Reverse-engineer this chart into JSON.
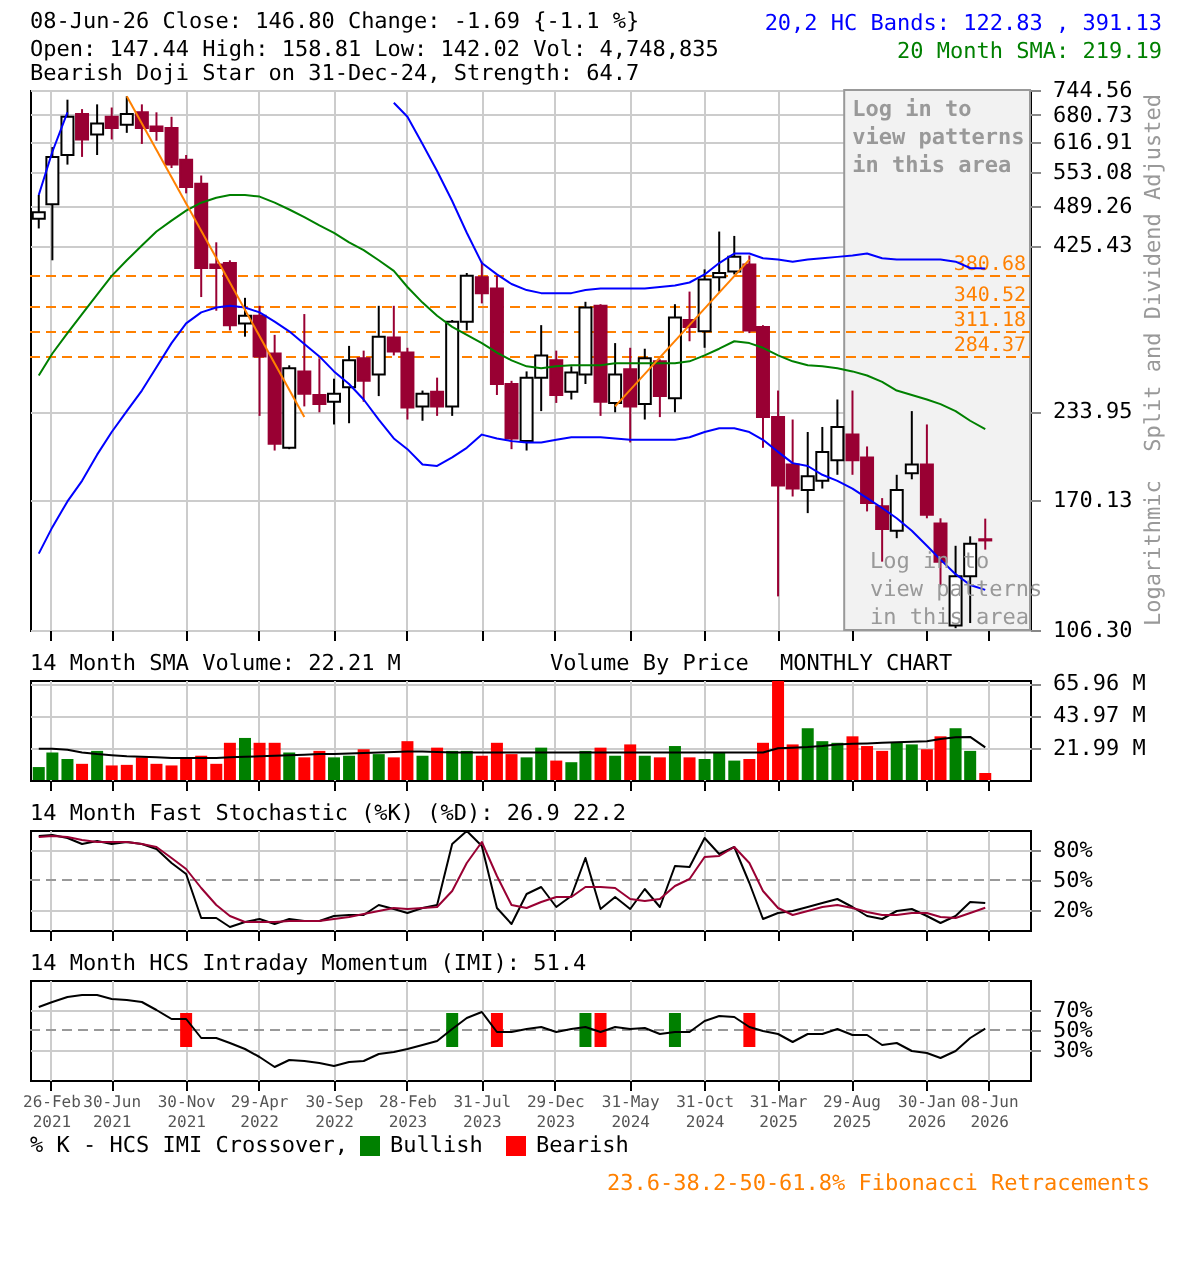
{
  "chart_data": [
    {
      "type": "candlestick",
      "title": "08-Jun-26   Close: 146.80   Change: -1.69 {-1.1 %}",
      "subtitle": "Open: 147.44   High: 158.81   Low: 142.02   Vol: 4,748,835",
      "ylabel": "Split and Dividend Adjusted",
      "annotations": [
        "Bearish Doji Star on 31-Dec-24, Strength: 64.7",
        "20,2 HC Bands: 122.83 , 391.13",
        "20 Month SMA: 219.19",
        "Log in to view patterns in this area",
        "Logarithmic"
      ],
      "x": [
        "2021-02",
        "2021-03",
        "2021-04",
        "2021-05",
        "2021-06",
        "2021-07",
        "2021-08",
        "2021-09",
        "2021-10",
        "2021-11",
        "2021-12",
        "2022-01",
        "2022-02",
        "2022-03",
        "2022-04",
        "2022-05",
        "2022-06",
        "2022-07",
        "2022-08",
        "2022-09",
        "2022-10",
        "2022-11",
        "2022-12",
        "2023-01",
        "2023-02",
        "2023-03",
        "2023-04",
        "2023-05",
        "2023-06",
        "2023-07",
        "2023-08",
        "2023-09",
        "2023-10",
        "2023-11",
        "2023-12",
        "2024-01",
        "2024-02",
        "2024-03",
        "2024-04",
        "2024-05",
        "2024-06",
        "2024-07",
        "2024-08",
        "2024-09",
        "2024-10",
        "2024-11",
        "2024-12",
        "2025-01",
        "2025-02",
        "2025-03",
        "2025-04",
        "2025-05",
        "2025-06",
        "2025-07",
        "2025-08",
        "2025-09",
        "2025-10",
        "2025-11",
        "2025-12",
        "2026-01",
        "2026-02",
        "2026-03",
        "2026-04",
        "2026-05",
        "2026-06"
      ],
      "ohlc": [
        [
          468,
          510,
          452,
          479
        ],
        [
          493,
          606,
          403,
          585
        ],
        [
          589,
          719,
          569,
          676
        ],
        [
          683,
          695,
          585,
          623
        ],
        [
          634,
          707,
          589,
          660
        ],
        [
          676,
          699,
          623,
          649
        ],
        [
          657,
          728,
          638,
          683
        ],
        [
          687,
          707,
          613,
          649
        ],
        [
          653,
          687,
          620,
          642
        ],
        [
          649,
          676,
          562,
          569
        ],
        [
          579,
          589,
          513,
          525
        ],
        [
          531,
          547,
          353,
          392
        ],
        [
          397,
          430,
          336,
          392
        ],
        [
          399,
          403,
          313,
          319
        ],
        [
          321,
          352,
          306,
          330
        ],
        [
          330,
          342,
          230,
          285
        ],
        [
          288,
          308,
          203,
          208
        ],
        [
          205,
          276,
          204,
          273
        ],
        [
          270,
          332,
          238,
          249
        ],
        [
          248,
          283,
          233,
          240
        ],
        [
          242,
          263,
          223,
          249
        ],
        [
          255,
          296,
          224,
          281
        ],
        [
          283,
          291,
          242,
          261
        ],
        [
          267,
          342,
          247,
          306
        ],
        [
          305,
          342,
          286,
          290
        ],
        [
          289,
          294,
          227,
          237
        ],
        [
          238,
          252,
          226,
          249
        ],
        [
          251,
          264,
          230,
          238
        ],
        [
          238,
          325,
          230,
          323
        ],
        [
          323,
          385,
          313,
          381
        ],
        [
          379,
          401,
          345,
          358
        ],
        [
          364,
          381,
          248,
          258
        ],
        [
          258,
          261,
          204,
          212
        ],
        [
          210,
          270,
          203,
          264
        ],
        [
          264,
          319,
          234,
          286
        ],
        [
          281,
          291,
          241,
          248
        ],
        [
          251,
          275,
          244,
          269
        ],
        [
          267,
          347,
          258,
          340
        ],
        [
          342,
          344,
          230,
          242
        ],
        [
          241,
          299,
          233,
          267
        ],
        [
          272,
          294,
          209,
          238
        ],
        [
          240,
          293,
          227,
          283
        ],
        [
          280,
          282,
          229,
          247
        ],
        [
          245,
          344,
          233,
          328
        ],
        [
          325,
          360,
          301,
          317
        ],
        [
          312,
          390,
          294,
          376
        ],
        [
          379,
          447,
          360,
          385
        ],
        [
          387,
          440,
          383,
          408
        ],
        [
          397,
          410,
          310,
          313
        ],
        [
          317,
          319,
          205,
          229
        ],
        [
          229,
          252,
          120,
          179
        ],
        [
          193,
          227,
          172,
          177
        ],
        [
          176,
          217,
          162,
          185
        ],
        [
          182,
          221,
          177,
          202
        ],
        [
          196,
          244,
          186,
          221
        ],
        [
          215,
          252,
          186,
          196
        ],
        [
          198,
          206,
          163,
          168
        ],
        [
          166,
          171,
          136,
          153
        ],
        [
          152,
          186,
          148,
          176
        ],
        [
          187,
          234,
          183,
          193
        ],
        [
          193,
          223,
          159,
          161
        ],
        [
          156,
          159,
          125,
          136
        ],
        [
          108,
          144,
          107,
          129
        ],
        [
          129,
          149,
          109,
          145
        ],
        [
          147.44,
          158.81,
          142.02,
          146.8
        ]
      ],
      "colors": [
        "#000000",
        "#000000",
        "#000000",
        "#990033",
        "#000000",
        "#990033",
        "#000000",
        "#990033",
        "#990033",
        "#990033",
        "#990033",
        "#990033",
        "#990033",
        "#990033",
        "#000000",
        "#990033",
        "#990033",
        "#000000",
        "#990033",
        "#990033",
        "#000000",
        "#000000",
        "#990033",
        "#000000",
        "#990033",
        "#990033",
        "#000000",
        "#990033",
        "#000000",
        "#000000",
        "#990033",
        "#990033",
        "#990033",
        "#000000",
        "#000000",
        "#990033",
        "#000000",
        "#000000",
        "#990033",
        "#000000",
        "#990033",
        "#000000",
        "#990033",
        "#000000",
        "#990033",
        "#000000",
        "#000000",
        "#000000",
        "#990033",
        "#990033",
        "#990033",
        "#990033",
        "#000000",
        "#000000",
        "#000000",
        "#990033",
        "#990033",
        "#990033",
        "#000000",
        "#000000",
        "#990033",
        "#990033",
        "#000000",
        "#000000",
        "#990033"
      ],
      "series": [
        {
          "type": "line",
          "color": "#0000ff",
          "values": [
            510,
            596,
            687,
            null,
            null,
            null,
            null,
            null,
            null,
            null,
            null,
            null,
            null,
            null,
            null,
            null,
            null,
            null,
            null,
            null,
            null,
            null,
            null,
            null,
            711,
            676,
            613,
            556,
            499,
            445,
            399,
            383,
            370,
            362,
            358,
            358,
            358,
            362,
            364,
            364,
            364,
            364,
            366,
            368,
            372,
            383,
            399,
            413,
            413,
            406,
            404,
            401,
            404,
            406,
            408,
            410,
            413,
            406,
            404,
            404,
            404,
            404,
            401,
            392,
            391.13
          ]
        },
        {
          "type": "line",
          "color": "#0000ff",
          "values": [
            140,
            154,
            169,
            182,
            200,
            217,
            234,
            252,
            274,
            299,
            321,
            334,
            340,
            342,
            340,
            334,
            323,
            312,
            298,
            285,
            270,
            258,
            244,
            227,
            212,
            204,
            193,
            192,
            198,
            205,
            215,
            212,
            210,
            209,
            209,
            211,
            213,
            213,
            213,
            212,
            211,
            211,
            211,
            211,
            213,
            217,
            220,
            220,
            217,
            211,
            202,
            194,
            192,
            186,
            182,
            177,
            171,
            165,
            159,
            152,
            144,
            137,
            130,
            125,
            122.83
          ]
        },
        {
          "type": "line",
          "color": "#008000",
          "values": [
            266,
            288,
            310,
            332,
            356,
            381,
            403,
            425,
            447,
            465,
            482,
            496,
            505,
            510,
            510,
            507,
            496,
            484,
            471,
            457,
            445,
            430,
            418,
            403,
            388,
            366,
            346,
            330,
            317,
            308,
            299,
            289,
            281,
            275,
            273,
            275,
            276,
            276,
            276,
            278,
            278,
            278,
            278,
            278,
            280,
            286,
            293,
            301,
            299,
            294,
            286,
            280,
            276,
            275,
            273,
            270,
            266,
            260,
            252,
            248,
            244,
            240,
            234,
            226,
            219.19
          ]
        },
        {
          "type": "line",
          "color": "#ff8000",
          "x": [
            "2021-08",
            "2022-08"
          ],
          "values": [
            728,
            229
          ]
        },
        {
          "type": "line",
          "color": "#ff8000",
          "x": [
            "2024-05",
            "2025-02"
          ],
          "values": [
            238,
            404
          ]
        }
      ],
      "ref_lines": [
        {
          "axis": "y",
          "value": 380.68,
          "label": "380.68",
          "color": "#ff8000",
          "line_style": "dashed"
        },
        {
          "axis": "y",
          "value": 340.52,
          "label": "340.52",
          "color": "#ff8000",
          "line_style": "dashed"
        },
        {
          "axis": "y",
          "value": 311.18,
          "label": "311.18",
          "color": "#ff8000",
          "line_style": "dashed"
        },
        {
          "axis": "y",
          "value": 284.37,
          "label": "284.37",
          "color": "#ff8000",
          "line_style": "dashed"
        }
      ],
      "bands": [
        {
          "axis": "x",
          "from": "2025-08-15",
          "to": "2026-09-01",
          "label": "Log in to view patterns in this area",
          "color": "#f2f2f2"
        }
      ],
      "log": true,
      "ylim": [
        106.3,
        744.56
      ],
      "yticks": [
        {
          "value": 106.3,
          "label": "106.30"
        },
        170.13,
        233.95,
        425.43,
        489.26,
        553.08,
        616.91,
        680.73,
        744.56
      ],
      "xlim": [
        "2021-01-14",
        "2026-09-01"
      ],
      "xticks": [
        {
          "value": "2021-02-26",
          "label": null
        },
        {
          "value": "2021-06-30",
          "label": null
        },
        {
          "value": "2021-11-30",
          "label": null
        },
        {
          "value": "2022-04-29",
          "label": null
        },
        {
          "value": "2022-09-30",
          "label": null
        },
        {
          "value": "2023-02-28",
          "label": null
        },
        {
          "value": "2023-07-31",
          "label": null
        },
        {
          "value": "2023-12-29",
          "label": null
        },
        {
          "value": "2024-05-31",
          "label": null
        },
        {
          "value": "2024-10-31",
          "label": null
        },
        {
          "value": "2025-03-31",
          "label": null
        },
        {
          "value": "2025-08-29",
          "label": null
        },
        {
          "value": "2026-01-30",
          "label": null
        },
        {
          "value": "2026-06-08",
          "label": null
        }
      ],
      "tick_labels": "y",
      "grid": true,
      "line_style": "solid"
    },
    {
      "type": "bar",
      "title": "14 Month SMA Volume: 22.21 M",
      "annotations": [
        "Volume By Price",
        "MONTHLY CHART"
      ],
      "x": [
        "2021-02",
        "2021-03",
        "2021-04",
        "2021-05",
        "2021-06",
        "2021-07",
        "2021-08",
        "2021-09",
        "2021-10",
        "2021-11",
        "2021-12",
        "2022-01",
        "2022-02",
        "2022-03",
        "2022-04",
        "2022-05",
        "2022-06",
        "2022-07",
        "2022-08",
        "2022-09",
        "2022-10",
        "2022-11",
        "2022-12",
        "2023-01",
        "2023-02",
        "2023-03",
        "2023-04",
        "2023-05",
        "2023-06",
        "2023-07",
        "2023-08",
        "2023-09",
        "2023-10",
        "2023-11",
        "2023-12",
        "2024-01",
        "2024-02",
        "2024-03",
        "2024-04",
        "2024-05",
        "2024-06",
        "2024-07",
        "2024-08",
        "2024-09",
        "2024-10",
        "2024-11",
        "2024-12",
        "2025-01",
        "2025-02",
        "2025-03",
        "2025-04",
        "2025-05",
        "2025-06",
        "2025-07",
        "2025-08",
        "2025-09",
        "2025-10",
        "2025-11",
        "2025-12",
        "2026-01",
        "2026-02",
        "2026-03",
        "2026-04",
        "2026-05",
        "2026-06"
      ],
      "series": [
        {
          "type": "bar",
          "values": [
            8.8,
            18.7,
            14.3,
            11.0,
            19.8,
            9.9,
            10.3,
            15.4,
            11.0,
            9.9,
            15.4,
            16.5,
            11.0,
            25.3,
            28.6,
            25.3,
            25.3,
            18.7,
            15.4,
            19.8,
            15.4,
            16.5,
            20.9,
            17.6,
            15.4,
            26.4,
            16.5,
            22.0,
            19.8,
            19.8,
            16.5,
            25.3,
            17.6,
            15.4,
            22.0,
            13.2,
            12.1,
            19.8,
            22.0,
            16.5,
            24.2,
            16.5,
            15.4,
            23.1,
            15.4,
            14.3,
            18.7,
            13.2,
            14.3,
            25.3,
            67.4,
            24.2,
            35.2,
            26.4,
            25.3,
            29.7,
            23.1,
            19.8,
            25.3,
            24.2,
            20.9,
            29.7,
            35.2,
            19.8,
            4.75
          ],
          "colors": [
            "#008000",
            "#008000",
            "#008000",
            "#ff0000",
            "#008000",
            "#ff0000",
            "#ff0000",
            "#ff0000",
            "#ff0000",
            "#ff0000",
            "#ff0000",
            "#ff0000",
            "#ff0000",
            "#ff0000",
            "#008000",
            "#ff0000",
            "#ff0000",
            "#008000",
            "#ff0000",
            "#ff0000",
            "#008000",
            "#008000",
            "#ff0000",
            "#008000",
            "#ff0000",
            "#ff0000",
            "#008000",
            "#ff0000",
            "#008000",
            "#008000",
            "#ff0000",
            "#ff0000",
            "#ff0000",
            "#008000",
            "#008000",
            "#ff0000",
            "#008000",
            "#008000",
            "#ff0000",
            "#008000",
            "#ff0000",
            "#008000",
            "#ff0000",
            "#008000",
            "#ff0000",
            "#008000",
            "#008000",
            "#008000",
            "#ff0000",
            "#ff0000",
            "#ff0000",
            "#ff0000",
            "#008000",
            "#008000",
            "#008000",
            "#ff0000",
            "#ff0000",
            "#ff0000",
            "#008000",
            "#008000",
            "#ff0000",
            "#ff0000",
            "#008000",
            "#008000",
            "#ff0000"
          ]
        },
        {
          "type": "line",
          "color": "#000000",
          "values": [
            21.3,
            21.3,
            20.5,
            18.7,
            17.6,
            16.9,
            16.1,
            15.8,
            15.4,
            15.0,
            15.0,
            15.0,
            15.0,
            15.4,
            15.8,
            16.1,
            16.5,
            16.9,
            17.2,
            17.6,
            17.6,
            18.0,
            18.3,
            18.7,
            19.1,
            19.4,
            19.4,
            19.1,
            18.7,
            18.7,
            18.7,
            18.7,
            18.7,
            18.7,
            18.7,
            18.7,
            18.7,
            18.7,
            18.7,
            18.7,
            18.7,
            18.7,
            18.7,
            18.7,
            18.7,
            18.7,
            18.7,
            18.7,
            18.7,
            18.7,
            21.6,
            22.0,
            22.4,
            23.1,
            24.2,
            24.6,
            24.9,
            25.3,
            25.7,
            26.0,
            26.4,
            27.9,
            29.0,
            29.3,
            22.21
          ]
        }
      ],
      "ylim": [
        0,
        68
      ],
      "yticks": [
        {
          "value": 21.99,
          "label": "21.99 M"
        },
        {
          "value": 43.97,
          "label": "43.97 M"
        },
        {
          "value": 65.96,
          "label": "65.96 M"
        }
      ],
      "xlim": [
        "2021-01-14",
        "2026-09-01"
      ],
      "xticks": [
        {
          "value": "2021-02-26",
          "label": null
        },
        {
          "value": "2021-06-30",
          "label": null
        },
        {
          "value": "2021-11-30",
          "label": null
        },
        {
          "value": "2022-04-29",
          "label": null
        },
        {
          "value": "2022-09-30",
          "label": null
        },
        {
          "value": "2023-02-28",
          "label": null
        },
        {
          "value": "2023-07-31",
          "label": null
        },
        {
          "value": "2023-12-29",
          "label": null
        },
        {
          "value": "2024-05-31",
          "label": null
        },
        {
          "value": "2024-10-31",
          "label": null
        },
        {
          "value": "2025-03-31",
          "label": null
        },
        {
          "value": "2025-08-29",
          "label": null
        },
        {
          "value": "2026-01-30",
          "label": null
        },
        {
          "value": "2026-06-08",
          "label": null
        }
      ],
      "tick_labels": "y",
      "grid": true
    },
    {
      "type": "line",
      "title": "14 Month Fast Stochastic (%K) (%D): 26.9  22.2",
      "x": [
        "2021-02",
        "2021-03",
        "2021-04",
        "2021-05",
        "2021-06",
        "2021-07",
        "2021-08",
        "2021-09",
        "2021-10",
        "2021-11",
        "2021-12",
        "2022-01",
        "2022-02",
        "2022-03",
        "2022-04",
        "2022-05",
        "2022-06",
        "2022-07",
        "2022-08",
        "2022-09",
        "2022-10",
        "2022-11",
        "2022-12",
        "2023-01",
        "2023-02",
        "2023-03",
        "2023-04",
        "2023-05",
        "2023-06",
        "2023-07",
        "2023-08",
        "2023-09",
        "2023-10",
        "2023-11",
        "2023-12",
        "2024-01",
        "2024-02",
        "2024-03",
        "2024-04",
        "2024-05",
        "2024-06",
        "2024-07",
        "2024-08",
        "2024-09",
        "2024-10",
        "2024-11",
        "2024-12",
        "2025-01",
        "2025-02",
        "2025-03",
        "2025-04",
        "2025-05",
        "2025-06",
        "2025-07",
        "2025-08",
        "2025-09",
        "2025-10",
        "2025-11",
        "2025-12",
        "2026-01",
        "2026-02",
        "2026-03",
        "2026-04",
        "2026-05",
        "2026-06"
      ],
      "series": [
        {
          "color": "#000000",
          "values": [
            94,
            95,
            92,
            86,
            89,
            86,
            88,
            86,
            81,
            67,
            56,
            12,
            12,
            3,
            8,
            11,
            6,
            11,
            9,
            9,
            14,
            15,
            15,
            25,
            21,
            17,
            22,
            25,
            86,
            99,
            84,
            22,
            6,
            36,
            43,
            23,
            34,
            72,
            21,
            33,
            21,
            41,
            23,
            64,
            63,
            92,
            76,
            83,
            47,
            11,
            17,
            19,
            23,
            27,
            31,
            23,
            14,
            11,
            19,
            21,
            14,
            7,
            14,
            28,
            26.9
          ]
        },
        {
          "color": "#990033",
          "values": [
            93,
            94,
            93,
            90,
            88,
            88,
            88,
            86,
            83,
            72,
            61,
            42,
            25,
            14,
            8,
            8,
            8,
            9,
            9,
            9,
            11,
            13,
            16,
            19,
            22,
            21,
            22,
            23,
            39,
            67,
            88,
            54,
            25,
            22,
            28,
            33,
            33,
            43,
            43,
            42,
            31,
            29,
            31,
            44,
            51,
            73,
            74,
            83,
            67,
            39,
            22,
            15,
            19,
            23,
            25,
            22,
            18,
            15,
            15,
            17,
            17,
            13,
            12,
            17,
            22.2
          ]
        }
      ],
      "ref_lines": [
        {
          "axis": "y",
          "value": 50,
          "color": "#999999",
          "line_style": "dashed"
        }
      ],
      "ylim": [
        0,
        100
      ],
      "yticks": [
        {
          "value": 20,
          "label": "20%"
        },
        {
          "value": 50,
          "label": "50%"
        },
        {
          "value": 80,
          "label": "80%"
        }
      ],
      "xlim": [
        "2021-01-14",
        "2026-09-01"
      ],
      "xticks": [
        {
          "value": "2021-02-26",
          "label": null
        },
        {
          "value": "2021-06-30",
          "label": null
        },
        {
          "value": "2021-11-30",
          "label": null
        },
        {
          "value": "2022-04-29",
          "label": null
        },
        {
          "value": "2022-09-30",
          "label": null
        },
        {
          "value": "2023-02-28",
          "label": null
        },
        {
          "value": "2023-07-31",
          "label": null
        },
        {
          "value": "2023-12-29",
          "label": null
        },
        {
          "value": "2024-05-31",
          "label": null
        },
        {
          "value": "2024-10-31",
          "label": null
        },
        {
          "value": "2025-03-31",
          "label": null
        },
        {
          "value": "2025-08-29",
          "label": null
        },
        {
          "value": "2026-01-30",
          "label": null
        },
        {
          "value": "2026-06-08",
          "label": null
        }
      ],
      "tick_labels": "y",
      "grid": true
    },
    {
      "type": "line",
      "title": "14 Month HCS Intraday Momentum (IMI): 51.4",
      "legend_title": "% K - HCS IMI Crossover,",
      "legend": "bottom",
      "annotations": [
        "23.6-38.2-50-61.8% Fibonacci Retracements"
      ],
      "x": [
        "2021-02",
        "2021-03",
        "2021-04",
        "2021-05",
        "2021-06",
        "2021-07",
        "2021-08",
        "2021-09",
        "2021-10",
        "2021-11",
        "2021-12",
        "2022-01",
        "2022-02",
        "2022-03",
        "2022-04",
        "2022-05",
        "2022-06",
        "2022-07",
        "2022-08",
        "2022-09",
        "2022-10",
        "2022-11",
        "2022-12",
        "2023-01",
        "2023-02",
        "2023-03",
        "2023-04",
        "2023-05",
        "2023-06",
        "2023-07",
        "2023-08",
        "2023-09",
        "2023-10",
        "2023-11",
        "2023-12",
        "2024-01",
        "2024-02",
        "2024-03",
        "2024-04",
        "2024-05",
        "2024-06",
        "2024-07",
        "2024-08",
        "2024-09",
        "2024-10",
        "2024-11",
        "2024-12",
        "2025-01",
        "2025-02",
        "2025-03",
        "2025-04",
        "2025-05",
        "2025-06",
        "2025-07",
        "2025-08",
        "2025-09",
        "2025-10",
        "2025-11",
        "2025-12",
        "2026-01",
        "2026-02",
        "2026-03",
        "2026-04",
        "2026-05",
        "2026-06"
      ],
      "series": [
        {
          "type": "bar",
          "name": "Bullish",
          "color": "#008000",
          "x": [
            "2023-06",
            "2024-03",
            "2024-09"
          ],
          "base": [
            33,
            33,
            33
          ],
          "values": [
            34,
            34,
            34
          ]
        },
        {
          "type": "bar",
          "name": "Bearish",
          "color": "#ff0000",
          "x": [
            "2021-12",
            "2023-09",
            "2024-04",
            "2025-02"
          ],
          "base": [
            33,
            33,
            33,
            33
          ],
          "values": [
            34,
            34,
            34,
            34
          ]
        },
        {
          "type": "line",
          "color": "#000000",
          "values": [
            73,
            78,
            83,
            85,
            85,
            81,
            80,
            78,
            70,
            61,
            61,
            42,
            42,
            37,
            31,
            23,
            13,
            20,
            19,
            17,
            14,
            18,
            19,
            26,
            28,
            31,
            35,
            39,
            51,
            62,
            68,
            48,
            48,
            51,
            53,
            48,
            51,
            53,
            48,
            53,
            51,
            52,
            46,
            48,
            48,
            59,
            64,
            63,
            53,
            49,
            46,
            38,
            46,
            46,
            51,
            45,
            45,
            35,
            37,
            29,
            27,
            22,
            29,
            42,
            51.4
          ]
        }
      ],
      "ref_lines": [
        {
          "axis": "y",
          "value": 50,
          "color": "#999999",
          "line_style": "dashed"
        }
      ],
      "ylim": [
        0,
        100
      ],
      "yticks": [
        {
          "value": 30,
          "label": "30%"
        },
        {
          "value": 50,
          "label": "50%"
        },
        {
          "value": 70,
          "label": "70%"
        }
      ],
      "xlim": [
        "2021-01-14",
        "2026-09-01"
      ],
      "xticks": [
        {
          "value": "2021-02-26",
          "label": "26-Feb 2021"
        },
        {
          "value": "2021-06-30",
          "label": "30-Jun 2021"
        },
        {
          "value": "2021-11-30",
          "label": "30-Nov 2021"
        },
        {
          "value": "2022-04-29",
          "label": "29-Apr 2022"
        },
        {
          "value": "2022-09-30",
          "label": "30-Sep 2022"
        },
        {
          "value": "2023-02-28",
          "label": "28-Feb 2023"
        },
        {
          "value": "2023-07-31",
          "label": "31-Jul 2023"
        },
        {
          "value": "2023-12-29",
          "label": "29-Dec 2023"
        },
        {
          "value": "2024-05-31",
          "label": "31-May 2024"
        },
        {
          "value": "2024-10-31",
          "label": "31-Oct 2024"
        },
        {
          "value": "2025-03-31",
          "label": "31-Mar 2025"
        },
        {
          "value": "2025-08-29",
          "label": "29-Aug 2025"
        },
        {
          "value": "2026-01-30",
          "label": "30-Jan 2026"
        },
        {
          "value": "2026-06-08",
          "label": "08-Jun 2026"
        }
      ],
      "grid": true
    }
  ]
}
